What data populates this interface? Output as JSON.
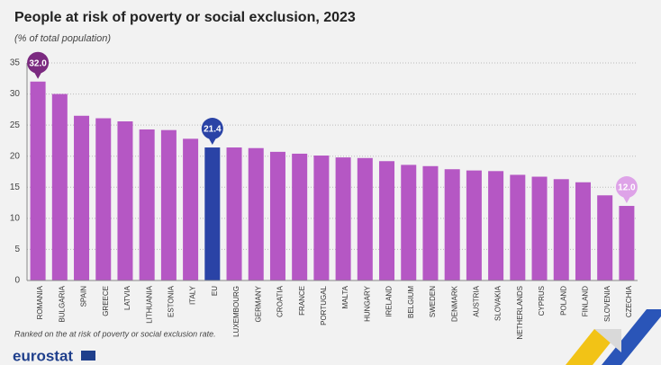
{
  "chart_data": {
    "type": "bar",
    "title": "People at risk of poverty or social exclusion, 2023",
    "subtitle": "(% of total population)",
    "note": "Ranked on the at risk of poverty or social exclusion rate.",
    "source": "eurostat",
    "categories": [
      "ROMANIA",
      "BULGARIA",
      "SPAIN",
      "GREECE",
      "LATVIA",
      "LITHUANIA",
      "ESTONIA",
      "ITALY",
      "EU",
      "LUXEMBOURG",
      "GERMANY",
      "CROATIA",
      "FRANCE",
      "PORTUGAL",
      "MALTA",
      "HUNGARY",
      "IRELAND",
      "BELGIUM",
      "SWEDEN",
      "DENMARK",
      "AUSTRIA",
      "SLOVAKIA",
      "NETHERLANDS",
      "CYPRUS",
      "POLAND",
      "FINLAND",
      "SLOVENIA",
      "CZECHIA"
    ],
    "values": [
      32.0,
      30.0,
      26.5,
      26.1,
      25.6,
      24.3,
      24.2,
      22.8,
      21.4,
      21.4,
      21.3,
      20.7,
      20.4,
      20.1,
      19.8,
      19.7,
      19.2,
      18.6,
      18.4,
      17.9,
      17.7,
      17.6,
      17.0,
      16.7,
      16.3,
      15.8,
      13.7,
      12.0
    ],
    "value_labels": [
      "32.0",
      null,
      null,
      null,
      null,
      null,
      null,
      null,
      "21.4",
      null,
      null,
      null,
      null,
      null,
      null,
      null,
      null,
      null,
      null,
      null,
      null,
      null,
      null,
      null,
      null,
      null,
      null,
      "12.0"
    ],
    "colors": [
      "#b557c4",
      "#b557c4",
      "#b557c4",
      "#b557c4",
      "#b557c4",
      "#b557c4",
      "#b557c4",
      "#b557c4",
      "#2a43a6",
      "#b557c4",
      "#b557c4",
      "#b557c4",
      "#b557c4",
      "#b557c4",
      "#b557c4",
      "#b557c4",
      "#b557c4",
      "#b557c4",
      "#b557c4",
      "#b557c4",
      "#b557c4",
      "#b557c4",
      "#b557c4",
      "#b557c4",
      "#b557c4",
      "#b557c4",
      "#b557c4",
      "#b557c4"
    ],
    "value_label_colors": [
      "#7b2a80",
      null,
      null,
      null,
      null,
      null,
      null,
      null,
      "#2a43a6",
      null,
      null,
      null,
      null,
      null,
      null,
      null,
      null,
      null,
      null,
      null,
      null,
      null,
      null,
      null,
      null,
      null,
      null,
      "#dea3e8"
    ],
    "ylim": [
      0,
      35
    ],
    "yticks": [
      0,
      5,
      10,
      15,
      20,
      25,
      30,
      35
    ],
    "grid": true
  }
}
